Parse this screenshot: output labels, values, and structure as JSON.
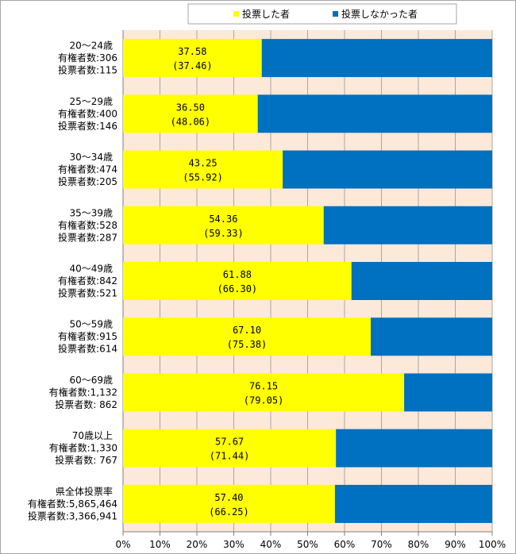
{
  "chart_data": {
    "type": "bar",
    "orientation": "horizontal",
    "stacked": true,
    "legend_position": "top",
    "grid": true,
    "xlim": [
      0,
      100
    ],
    "x_ticks": [
      "0%",
      "10%",
      "20%",
      "30%",
      "40%",
      "50%",
      "60%",
      "70%",
      "80%",
      "90%",
      "100%"
    ],
    "colors": {
      "voted": "#ffff00",
      "not_voted": "#0070c0",
      "plot_bg": "#fde9d9",
      "grid": "#a6a6a6"
    },
    "series": [
      {
        "name": "投票した者",
        "values": [
          37.58,
          36.5,
          43.25,
          54.36,
          61.88,
          67.1,
          76.15,
          57.67,
          57.4
        ]
      },
      {
        "name": "投票しなかった者",
        "values": [
          62.42,
          63.5,
          56.75,
          45.64,
          38.12,
          32.9,
          23.85,
          42.33,
          42.6
        ]
      }
    ],
    "categories": [
      {
        "lines": [
          "20～24歳",
          "有権者数:306",
          "投票者数:115"
        ],
        "label": "37.58",
        "sub": "(37.46)"
      },
      {
        "lines": [
          "25～29歳",
          "有権者数:400",
          "投票者数:146"
        ],
        "label": "36.50",
        "sub": "(48.06)"
      },
      {
        "lines": [
          "30～34歳",
          "有権者数:474",
          "投票者数:205"
        ],
        "label": "43.25",
        "sub": "(55.92)"
      },
      {
        "lines": [
          "35～39歳",
          "有権者数:528",
          "投票者数:287"
        ],
        "label": "54.36",
        "sub": "(59.33)"
      },
      {
        "lines": [
          "40～49歳",
          "有権者数:842",
          "投票者数:521"
        ],
        "label": "61.88",
        "sub": "(66.30)"
      },
      {
        "lines": [
          "50～59歳",
          "有権者数:915",
          "投票者数:614"
        ],
        "label": "67.10",
        "sub": "(75.38)"
      },
      {
        "lines": [
          "60～69歳",
          "有権者数:1,132",
          "投票者数:   862"
        ],
        "label": "76.15",
        "sub": "(79.05)"
      },
      {
        "lines": [
          "70歳以上",
          "有権者数:1,330",
          "投票者数:   767"
        ],
        "label": "57.67",
        "sub": "(71.44)"
      },
      {
        "lines": [
          "県全体投票率",
          "有権者数:5,865,464",
          "投票者数:3,366,941"
        ],
        "label": "57.40",
        "sub": "(66.25)"
      }
    ]
  }
}
